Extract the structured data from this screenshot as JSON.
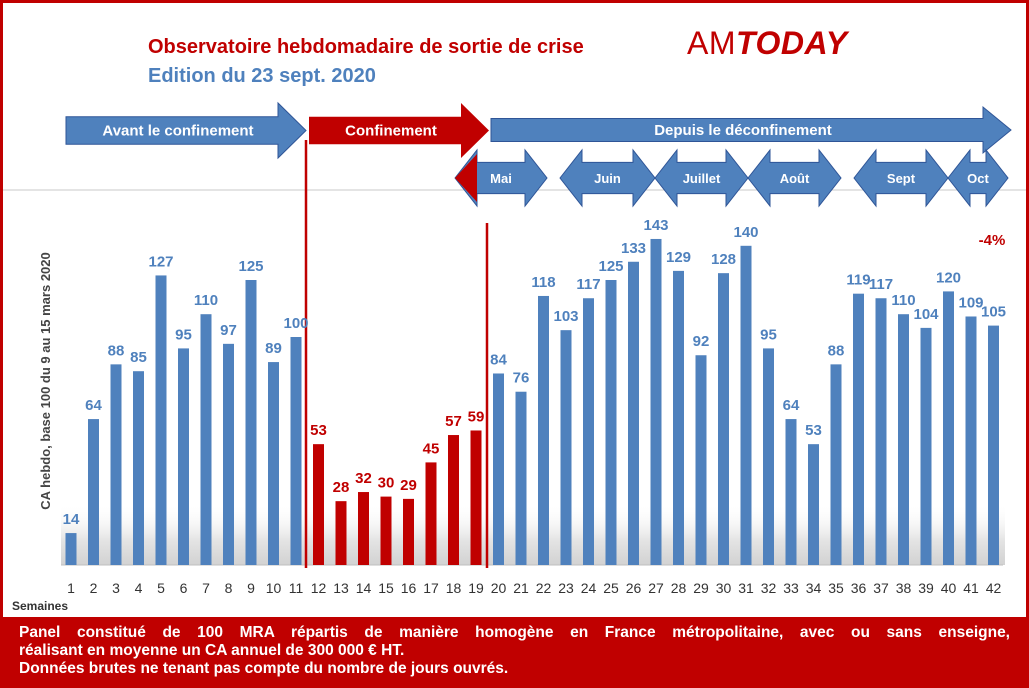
{
  "header": {
    "title": "Observatoire hebdomadaire de sortie de crise",
    "subtitle": "Edition du 23 sept. 2020",
    "logo": "AMTODAY",
    "logo_am": "AM",
    "logo_today": "TODAY"
  },
  "periods": [
    {
      "label": "Avant le confinement",
      "color": "#4f81bd"
    },
    {
      "label": "Confinement",
      "color": "#c00000"
    },
    {
      "label": "Depuis le déconfinement",
      "color": "#4f81bd"
    }
  ],
  "months": [
    "Mai",
    "Juin",
    "Juillet",
    "Août",
    "Sept",
    "Oct"
  ],
  "annotation": "-4%",
  "footer": {
    "line1": "Panel constitué de 100 MRA répartis de manière homogène en France métropolitaine, avec ou sans enseigne,",
    "line2": "réalisant en moyenne un CA annuel de 300 000 € HT.",
    "line3": "Données brutes ne tenant pas compte du nombre de jours ouvrés."
  },
  "chart_data": {
    "type": "bar",
    "ylabel": "CA hebdo, base 100 du 9 au 15 mars 2020",
    "xlabel": "Semaines",
    "ylim": [
      0,
      150
    ],
    "colors": {
      "normal": "#4f81bd",
      "confinement": "#c00000"
    },
    "categories": [
      "1",
      "2",
      "3",
      "4",
      "5",
      "6",
      "7",
      "8",
      "9",
      "10",
      "11",
      "12",
      "13",
      "14",
      "15",
      "16",
      "17",
      "18",
      "19",
      "20",
      "21",
      "22",
      "23",
      "24",
      "25",
      "26",
      "27",
      "28",
      "29",
      "30",
      "31",
      "32",
      "33",
      "34",
      "35",
      "36",
      "37",
      "38",
      "39",
      "40",
      "41",
      "42"
    ],
    "values": [
      14,
      64,
      88,
      85,
      127,
      95,
      110,
      97,
      125,
      89,
      100,
      53,
      28,
      32,
      30,
      29,
      45,
      57,
      59,
      84,
      76,
      118,
      103,
      117,
      125,
      133,
      143,
      129,
      92,
      128,
      140,
      95,
      64,
      53,
      88,
      119,
      117,
      110,
      104,
      120,
      109,
      105
    ],
    "confinement_weeks": [
      "12",
      "13",
      "14",
      "15",
      "16",
      "17",
      "18",
      "19"
    ]
  }
}
